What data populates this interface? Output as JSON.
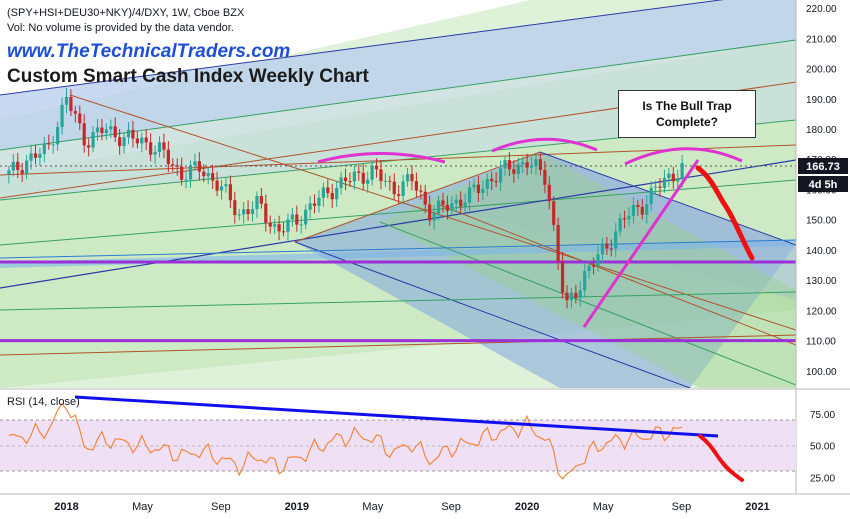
{
  "header": {
    "symbol_line": "(SPY+HSI+DEU30+NKY)/4/DXY, 1W, Cboe BZX",
    "volume_note": "Vol: No volume is provided by the data vendor.",
    "website": "www.TheTechnicalTraders.com",
    "title": "Custom Smart Cash Index Weekly Chart"
  },
  "callout": {
    "text": "Is The Bull Trap\nComplete?"
  },
  "price_tag": {
    "value": "166.73",
    "countdown": "4d 5h"
  },
  "colors": {
    "candle_up": "#26a69a",
    "candle_down": "#c62828",
    "callout_arc": "#e032d0",
    "forecast": "#ee1111",
    "support_line": "#9b30d9",
    "trendline": "#1010ee",
    "rsi_line": "#f0883e",
    "rsi_band": "#efe0f5"
  },
  "chart_data": [
    {
      "type": "line",
      "title": "",
      "time_axis_labels": [
        "2018",
        "May",
        "Sep",
        "2019",
        "May",
        "Sep",
        "2020",
        "May",
        "Sep",
        "2021"
      ],
      "y_ticks": [
        100,
        110,
        120,
        130,
        140,
        150,
        160,
        170,
        180,
        190,
        200,
        210,
        220
      ],
      "ylim": [
        95,
        222
      ],
      "last_price": 166.73,
      "series": [
        {
          "x": [
            "2017-10",
            "2017-11",
            "2017-12",
            "2018-01",
            "2018-02",
            "2018-03",
            "2018-04",
            "2018-05",
            "2018-06",
            "2018-07",
            "2018-08",
            "2018-09",
            "2018-10",
            "2018-11",
            "2018-12",
            "2019-01",
            "2019-02",
            "2019-03",
            "2019-04",
            "2019-05",
            "2019-06",
            "2019-07",
            "2019-08",
            "2019-09",
            "2019-10",
            "2019-11",
            "2019-12",
            "2020-01",
            "2020-02",
            "2020-03",
            "2020-04",
            "2020-05",
            "2020-06",
            "2020-07",
            "2020-08",
            "2020-09"
          ],
          "values": [
            165,
            170,
            173,
            190,
            176,
            180,
            177,
            176,
            172,
            165,
            167,
            161,
            152,
            155,
            146,
            150,
            156,
            161,
            164,
            166,
            160,
            163,
            152,
            155,
            158,
            163,
            167,
            169,
            164,
            120,
            132,
            140,
            150,
            155,
            162,
            167
          ]
        }
      ],
      "support_levels": [
        136,
        110
      ],
      "annotations": [
        "Is The Bull Trap\nComplete?"
      ]
    },
    {
      "type": "line",
      "title": "RSI (14, close)",
      "y_ticks": [
        25,
        50,
        75
      ],
      "ylim": [
        15,
        90
      ],
      "band": [
        30,
        70
      ],
      "series": [
        {
          "x": [
            "2017-10",
            "2017-11",
            "2017-12",
            "2018-01",
            "2018-02",
            "2018-03",
            "2018-04",
            "2018-05",
            "2018-06",
            "2018-07",
            "2018-08",
            "2018-09",
            "2018-10",
            "2018-11",
            "2018-12",
            "2019-01",
            "2019-02",
            "2019-03",
            "2019-04",
            "2019-05",
            "2019-06",
            "2019-07",
            "2019-08",
            "2019-09",
            "2019-10",
            "2019-11",
            "2019-12",
            "2020-01",
            "2020-02",
            "2020-03",
            "2020-04",
            "2020-05",
            "2020-06",
            "2020-07",
            "2020-08",
            "2020-09"
          ],
          "values": [
            55,
            58,
            62,
            85,
            48,
            55,
            52,
            50,
            47,
            42,
            46,
            40,
            34,
            42,
            33,
            40,
            48,
            55,
            58,
            56,
            44,
            52,
            38,
            48,
            52,
            58,
            62,
            66,
            55,
            22,
            42,
            52,
            55,
            57,
            60,
            62
          ]
        }
      ]
    }
  ]
}
